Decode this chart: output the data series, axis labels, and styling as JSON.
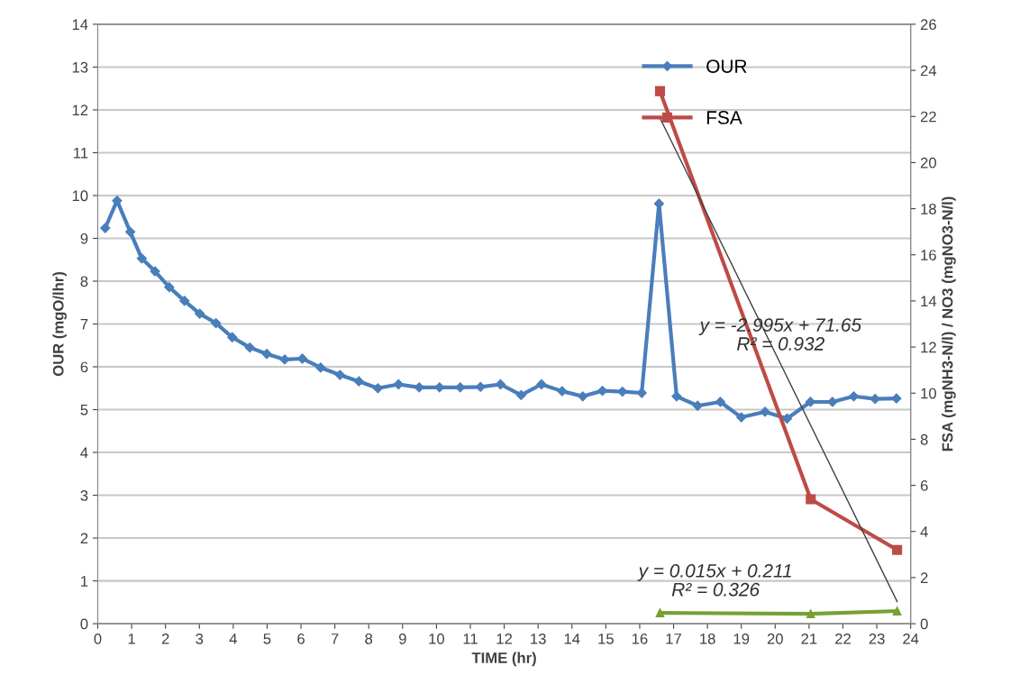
{
  "chart_data": {
    "type": "line",
    "xlabel": "TIME (hr)",
    "ylabel": "OUR (mgO/lhr)",
    "y2label": "FSA (mgNH3-N/l) / NO3 (mgNO3-N/l)",
    "xlim": [
      0,
      24
    ],
    "xticks": [
      0,
      1,
      2,
      3,
      4,
      5,
      6,
      7,
      8,
      9,
      10,
      11,
      12,
      13,
      14,
      15,
      16,
      17,
      18,
      19,
      20,
      21,
      22,
      23,
      24
    ],
    "ylim": [
      0,
      14
    ],
    "yticks": [
      0,
      1,
      2,
      3,
      4,
      5,
      6,
      7,
      8,
      9,
      10,
      11,
      12,
      13,
      14
    ],
    "y2lim": [
      0,
      26
    ],
    "y2ticks": [
      0,
      2,
      4,
      6,
      8,
      10,
      12,
      14,
      16,
      18,
      20,
      22,
      24,
      26
    ],
    "grid": "y",
    "legend": "top right",
    "series": [
      {
        "name": "OUR",
        "color": "#4a7ebb",
        "marker": "diamond",
        "x": [
          0.22,
          0.57,
          0.96,
          1.3,
          1.69,
          2.11,
          2.56,
          3.01,
          3.49,
          3.97,
          4.49,
          4.99,
          5.52,
          6.04,
          6.58,
          7.15,
          7.71,
          8.27,
          8.88,
          9.49,
          10.09,
          10.7,
          11.3,
          11.89,
          12.5,
          13.1,
          13.71,
          14.32,
          14.9,
          15.49,
          16.06,
          16.57,
          17.09,
          17.71,
          18.38,
          19.0,
          19.7,
          20.35,
          21.04,
          21.69,
          22.32,
          22.95,
          23.58
        ],
        "values": [
          9.24,
          9.88,
          9.15,
          8.53,
          8.23,
          7.86,
          7.54,
          7.24,
          7.02,
          6.69,
          6.45,
          6.3,
          6.17,
          6.19,
          5.98,
          5.81,
          5.66,
          5.5,
          5.59,
          5.52,
          5.52,
          5.52,
          5.53,
          5.59,
          5.34,
          5.59,
          5.43,
          5.31,
          5.44,
          5.42,
          5.39,
          9.81,
          5.31,
          5.09,
          5.18,
          4.82,
          4.95,
          4.79,
          5.18,
          5.18,
          5.31,
          5.25,
          5.26
        ]
      },
      {
        "name": "FSA",
        "color": "#be4b48",
        "marker": "square",
        "axis": "y2",
        "x": [
          16.6,
          21.05,
          23.6
        ],
        "values": [
          23.1,
          5.4,
          3.2
        ]
      },
      {
        "color": "#77a033",
        "marker": "triangle",
        "axis": "y2",
        "x": [
          16.6,
          21.05,
          23.6
        ],
        "values": [
          0.47,
          0.43,
          0.55
        ]
      },
      {
        "color": "#404040",
        "marker": "none",
        "axis": "y2",
        "x": [
          16.6,
          23.6
        ],
        "values": [
          21.93,
          0.96
        ]
      }
    ],
    "annotations": [
      "y = -2.995x + 71.65\nR² = 0.932",
      "y = 0.015x + 0.211\nR² = 0.326"
    ]
  }
}
